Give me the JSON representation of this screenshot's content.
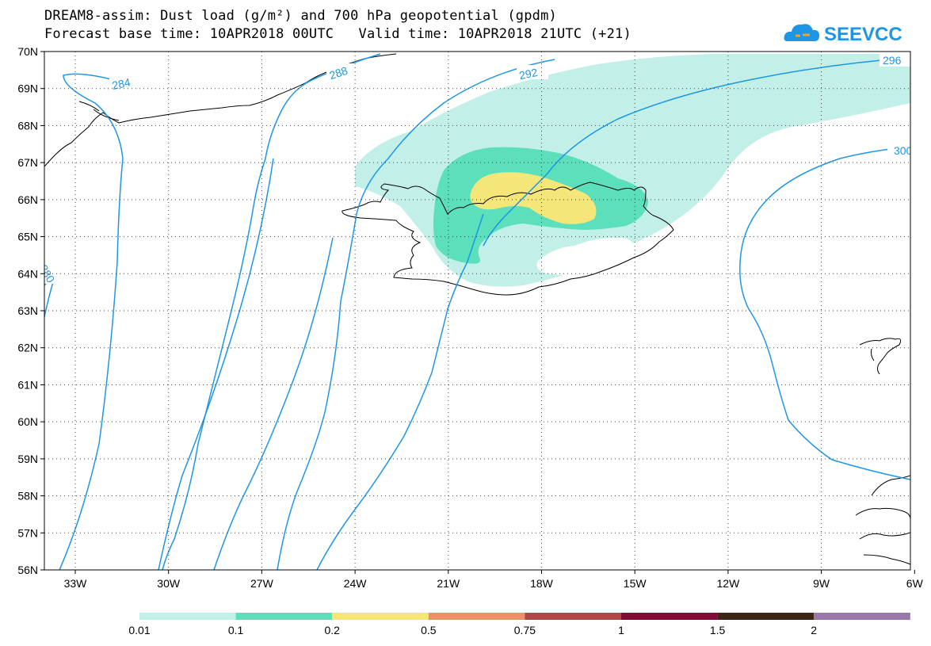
{
  "header": {
    "title_line1": "DREAM8-assim: Dust load (g/m²) and 700 hPa geopotential (gpdm)",
    "title_line2": "Forecast base time: 10APR2018 00UTC   Valid time: 10APR2018 21UTC (+21)"
  },
  "logo": {
    "text": "SEEVCCC",
    "color": "#1e96e6",
    "accent": "#f0a030"
  },
  "axes": {
    "lat_labels": [
      "70N",
      "69N",
      "68N",
      "67N",
      "66N",
      "65N",
      "64N",
      "63N",
      "62N",
      "61N",
      "60N",
      "59N",
      "58N",
      "57N",
      "56N"
    ],
    "lon_labels": [
      "33W",
      "30W",
      "27W",
      "24W",
      "21W",
      "18W",
      "15W",
      "12W",
      "9W",
      "6W"
    ]
  },
  "contour_labels": [
    "284",
    "288",
    "292",
    "296",
    "300",
    "280"
  ],
  "colors": {
    "contour": "#1e96e6",
    "coast": "#000000",
    "dust_0_01": "#c2f0e8",
    "dust_0_1": "#5ce0bc",
    "dust_0_2": "#f5e67a"
  },
  "colorbar": {
    "labels": [
      "0.01",
      "0.1",
      "0.2",
      "0.5",
      "0.75",
      "1",
      "1.5",
      "2"
    ],
    "colors": [
      "#c2f0e8",
      "#5ce0bc",
      "#f5e67a",
      "#e8926a",
      "#aa4a4a",
      "#7e0e34",
      "#3c2618",
      "#9878a8"
    ]
  }
}
